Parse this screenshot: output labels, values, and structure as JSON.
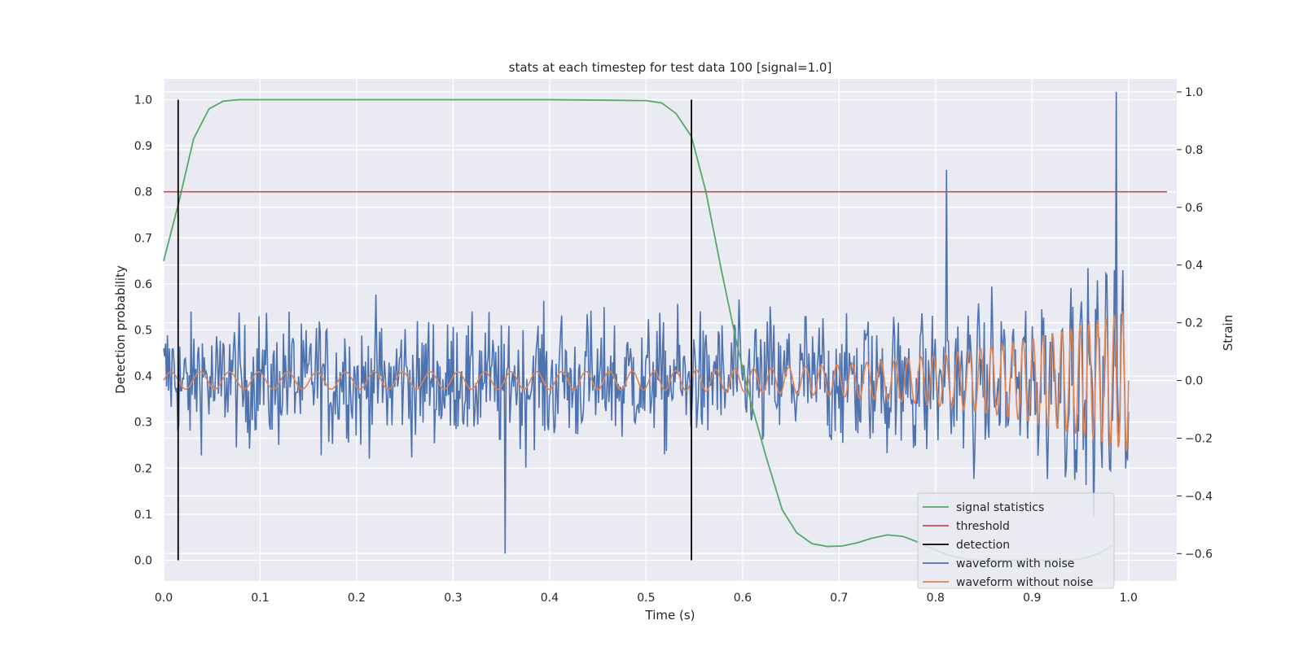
{
  "chart_data": {
    "type": "line",
    "title": "stats at each timestep for test data 100 [signal=1.0]",
    "xlabel": "Time (s)",
    "ylabel_left": "Detection probability",
    "ylabel_right": "Strain",
    "xlim": [
      0.0,
      1.05
    ],
    "ylim_left": [
      -0.045,
      1.045
    ],
    "ylim_right": [
      -0.695,
      1.045
    ],
    "x_ticks": [
      "0.0",
      "0.1",
      "0.2",
      "0.3",
      "0.4",
      "0.5",
      "0.6",
      "0.7",
      "0.8",
      "0.9",
      "1.0"
    ],
    "y_ticks_left": [
      "0.0",
      "0.1",
      "0.2",
      "0.3",
      "0.4",
      "0.5",
      "0.6",
      "0.7",
      "0.8",
      "0.9",
      "1.0"
    ],
    "y_ticks_right": [
      "−0.6",
      "−0.4",
      "−0.2",
      "0.0",
      "0.2",
      "0.4",
      "0.6",
      "0.8",
      "1.0"
    ],
    "grid": true,
    "legend_position": "lower-right",
    "colors": {
      "signal_statistics": "#55a868",
      "threshold": "#c44e52",
      "detection": "#000000",
      "waveform_with_noise": "#4c72b0",
      "waveform_without_noise": "#dd8452",
      "plot_background": "#eaeaf2",
      "grid": "#ffffff"
    },
    "series": [
      {
        "name": "signal statistics",
        "axis": "left",
        "x": [
          0.0,
          0.016,
          0.031,
          0.047,
          0.062,
          0.078,
          0.1,
          0.2,
          0.3,
          0.4,
          0.5,
          0.516,
          0.531,
          0.547,
          0.562,
          0.578,
          0.594,
          0.609,
          0.625,
          0.641,
          0.656,
          0.672,
          0.688,
          0.703,
          0.719,
          0.734,
          0.75,
          0.766,
          0.781,
          0.797,
          0.812,
          0.828,
          0.844,
          0.859,
          0.875,
          0.891,
          0.906,
          0.922,
          0.938,
          0.953,
          0.969,
          0.984
        ],
        "y": [
          0.65,
          0.78,
          0.915,
          0.98,
          0.997,
          1.0,
          1.0,
          1.0,
          1.0,
          1.0,
          0.998,
          0.993,
          0.97,
          0.92,
          0.8,
          0.63,
          0.47,
          0.34,
          0.22,
          0.11,
          0.06,
          0.036,
          0.03,
          0.031,
          0.038,
          0.048,
          0.055,
          0.052,
          0.04,
          0.025,
          0.012,
          0.004,
          0.0,
          0.0,
          0.0,
          0.0,
          0.0,
          0.0,
          0.0,
          0.004,
          0.014,
          0.033
        ]
      },
      {
        "name": "threshold",
        "axis": "left",
        "x": [
          0.0,
          1.04
        ],
        "y": [
          0.8,
          0.8
        ]
      },
      {
        "name": "detection",
        "axis": "left",
        "x": [
          0.015,
          0.547
        ],
        "y_range": [
          0.0,
          1.0
        ]
      },
      {
        "name": "waveform with noise",
        "axis": "right",
        "x_range": [
          0.0,
          1.0
        ],
        "samples": 1024,
        "y_min": -0.6,
        "y_max": 1.0
      },
      {
        "name": "waveform without noise",
        "axis": "right",
        "x_range": [
          0.0,
          1.0
        ],
        "amplitude_start": 0.03,
        "amplitude_end": 0.25,
        "cycles": 55
      }
    ],
    "legend": [
      {
        "label": "signal statistics",
        "key": "signal_statistics"
      },
      {
        "label": "threshold",
        "key": "threshold"
      },
      {
        "label": "detection",
        "key": "detection"
      },
      {
        "label": "waveform with noise",
        "key": "waveform_with_noise"
      },
      {
        "label": "waveform without noise",
        "key": "waveform_without_noise"
      }
    ]
  }
}
